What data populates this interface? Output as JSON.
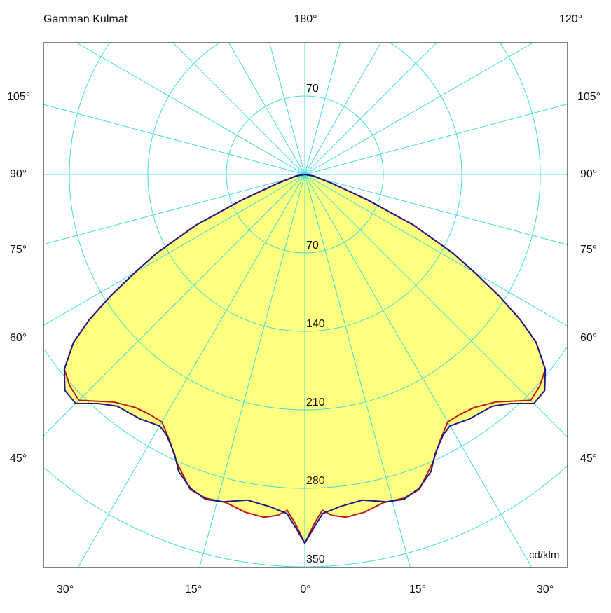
{
  "chart_data": {
    "type": "polar",
    "title": "Gamman Kulmat",
    "unit": "cd/klm",
    "top_labels": [
      "180°",
      "120°"
    ],
    "side_labels": [
      "105°",
      "90°",
      "75°",
      "60°",
      "45°"
    ],
    "bottom_labels": [
      "30°",
      "15°",
      "0°",
      "15°",
      "30°"
    ],
    "ring_values": [
      70,
      140,
      210,
      280,
      350
    ],
    "ring_labels": [
      "70",
      "70",
      "140",
      "210",
      "280",
      "350"
    ],
    "spoke_step_deg": 15,
    "grid": true,
    "fill_color": "#ffff80",
    "grid_color": "#40dcdc",
    "series": [
      {
        "color": "#c01818",
        "points": [
          [
            0,
            329
          ],
          [
            1.5,
            312
          ],
          [
            3,
            300
          ],
          [
            4.5,
            305
          ],
          [
            6.8,
            308
          ],
          [
            10,
            306
          ],
          [
            13.5,
            301
          ],
          [
            17,
            302
          ],
          [
            20,
            299
          ],
          [
            24,
            281
          ],
          [
            27,
            266
          ],
          [
            30,
            255
          ],
          [
            33,
            255
          ],
          [
            36,
            257
          ],
          [
            40,
            265
          ],
          [
            45,
            285
          ],
          [
            48,
            282
          ],
          [
            51,
            276
          ],
          [
            54,
            255
          ],
          [
            56,
            232
          ],
          [
            58,
            204
          ],
          [
            60,
            175
          ],
          [
            62,
            150
          ],
          [
            65,
            107
          ],
          [
            68,
            60
          ],
          [
            72,
            25
          ],
          [
            80,
            8
          ],
          [
            90,
            0
          ]
        ]
      },
      {
        "color": "#1a1a8c",
        "points": [
          [
            0,
            329
          ],
          [
            1.5,
            315
          ],
          [
            3,
            303
          ],
          [
            6,
            298
          ],
          [
            10,
            295
          ],
          [
            14,
            301
          ],
          [
            17,
            303
          ],
          [
            20,
            298
          ],
          [
            23,
            288
          ],
          [
            25,
            275
          ],
          [
            28,
            263
          ],
          [
            30,
            259
          ],
          [
            34,
            263
          ],
          [
            39,
            266
          ],
          [
            42,
            275
          ],
          [
            45,
            289
          ],
          [
            48,
            288
          ],
          [
            51,
            276
          ],
          [
            54,
            255
          ],
          [
            56,
            232
          ],
          [
            58,
            204
          ],
          [
            60,
            175
          ],
          [
            62,
            150
          ],
          [
            65,
            107
          ],
          [
            68,
            60
          ],
          [
            72,
            25
          ],
          [
            80,
            8
          ],
          [
            90,
            0
          ]
        ]
      }
    ]
  }
}
